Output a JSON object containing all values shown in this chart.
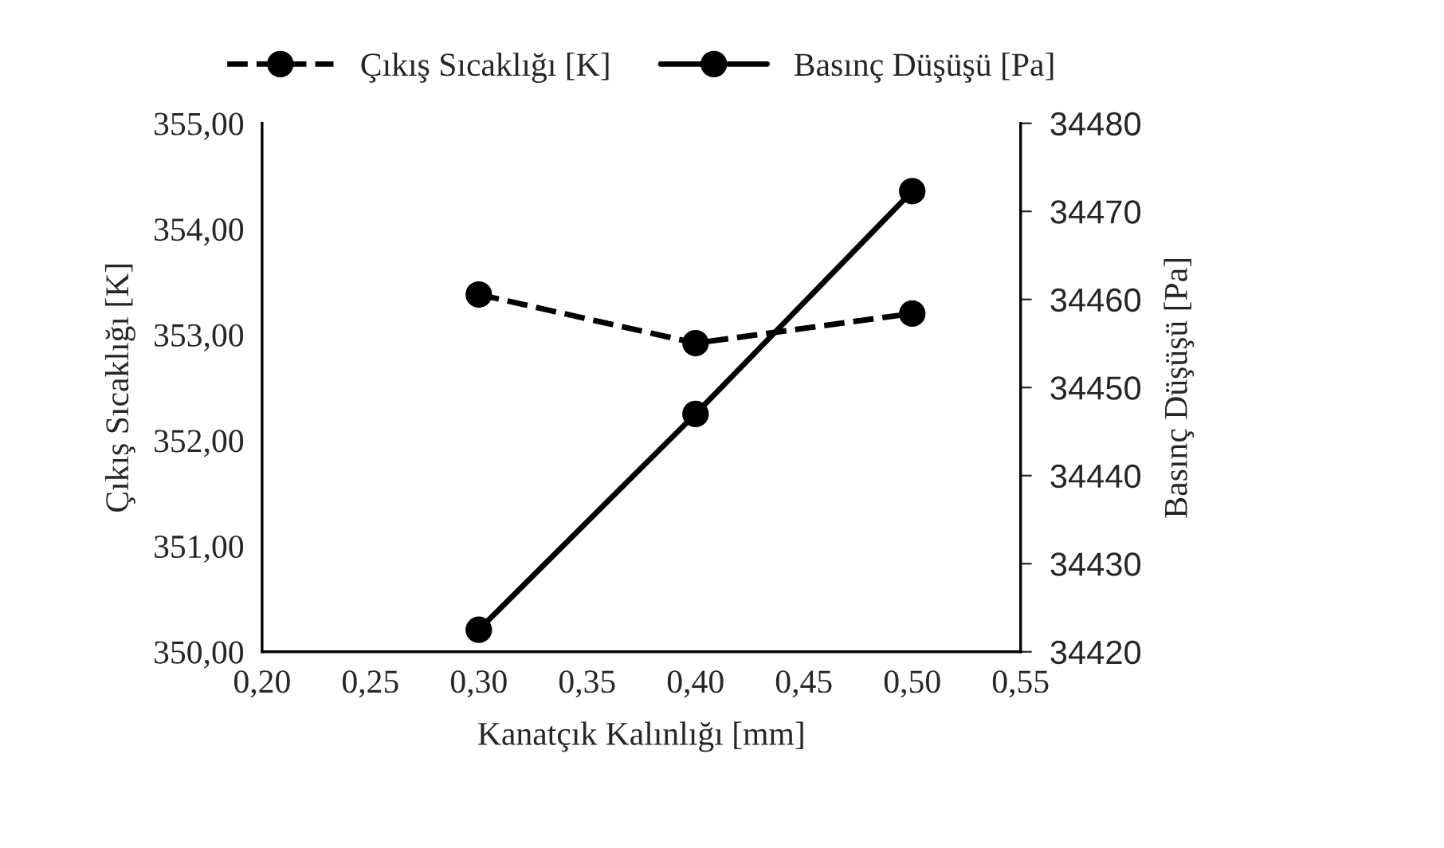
{
  "chart_data": {
    "type": "line",
    "xlabel": "Kanatçık Kalınlığı [mm]",
    "ylabel": "Çıkış Sıcaklığı [K]",
    "y2label": "Basınç Düşüşü [Pa]",
    "x": [
      0.3,
      0.4,
      0.5
    ],
    "series": [
      {
        "name": "Çıkış Sıcaklığı [K]",
        "color": "#000000",
        "values": [
          353.38,
          352.92,
          353.2
        ],
        "line_style": "dashed"
      },
      {
        "name": "Basınç Düşüşü [Pa]",
        "color": "#000000",
        "values": [
          34422.5,
          34447.0,
          34472.3
        ],
        "line_style": "solid",
        "axis": "y2"
      }
    ],
    "marker": "circle",
    "xlim": [
      0.2,
      0.55
    ],
    "xticks": [
      {
        "value": 0.2,
        "label": "0,20"
      },
      {
        "value": 0.25,
        "label": "0,25"
      },
      {
        "value": 0.3,
        "label": "0,30"
      },
      {
        "value": 0.35,
        "label": "0,35"
      },
      {
        "value": 0.4,
        "label": "0,40"
      },
      {
        "value": 0.45,
        "label": "0,45"
      },
      {
        "value": 0.5,
        "label": "0,50"
      },
      {
        "value": 0.55,
        "label": "0,55"
      }
    ],
    "ylim": [
      350,
      355
    ],
    "yticks": [
      {
        "value": 350,
        "label": "350,00"
      },
      {
        "value": 351,
        "label": "351,00"
      },
      {
        "value": 352,
        "label": "352,00"
      },
      {
        "value": 353,
        "label": "353,00"
      },
      {
        "value": 354,
        "label": "354,00"
      },
      {
        "value": 355,
        "label": "355,00"
      }
    ],
    "y2lim": [
      34420,
      34480
    ],
    "y2ticks": [
      34420,
      34430,
      34440,
      34450,
      34460,
      34470,
      34480
    ],
    "legend": "top"
  }
}
